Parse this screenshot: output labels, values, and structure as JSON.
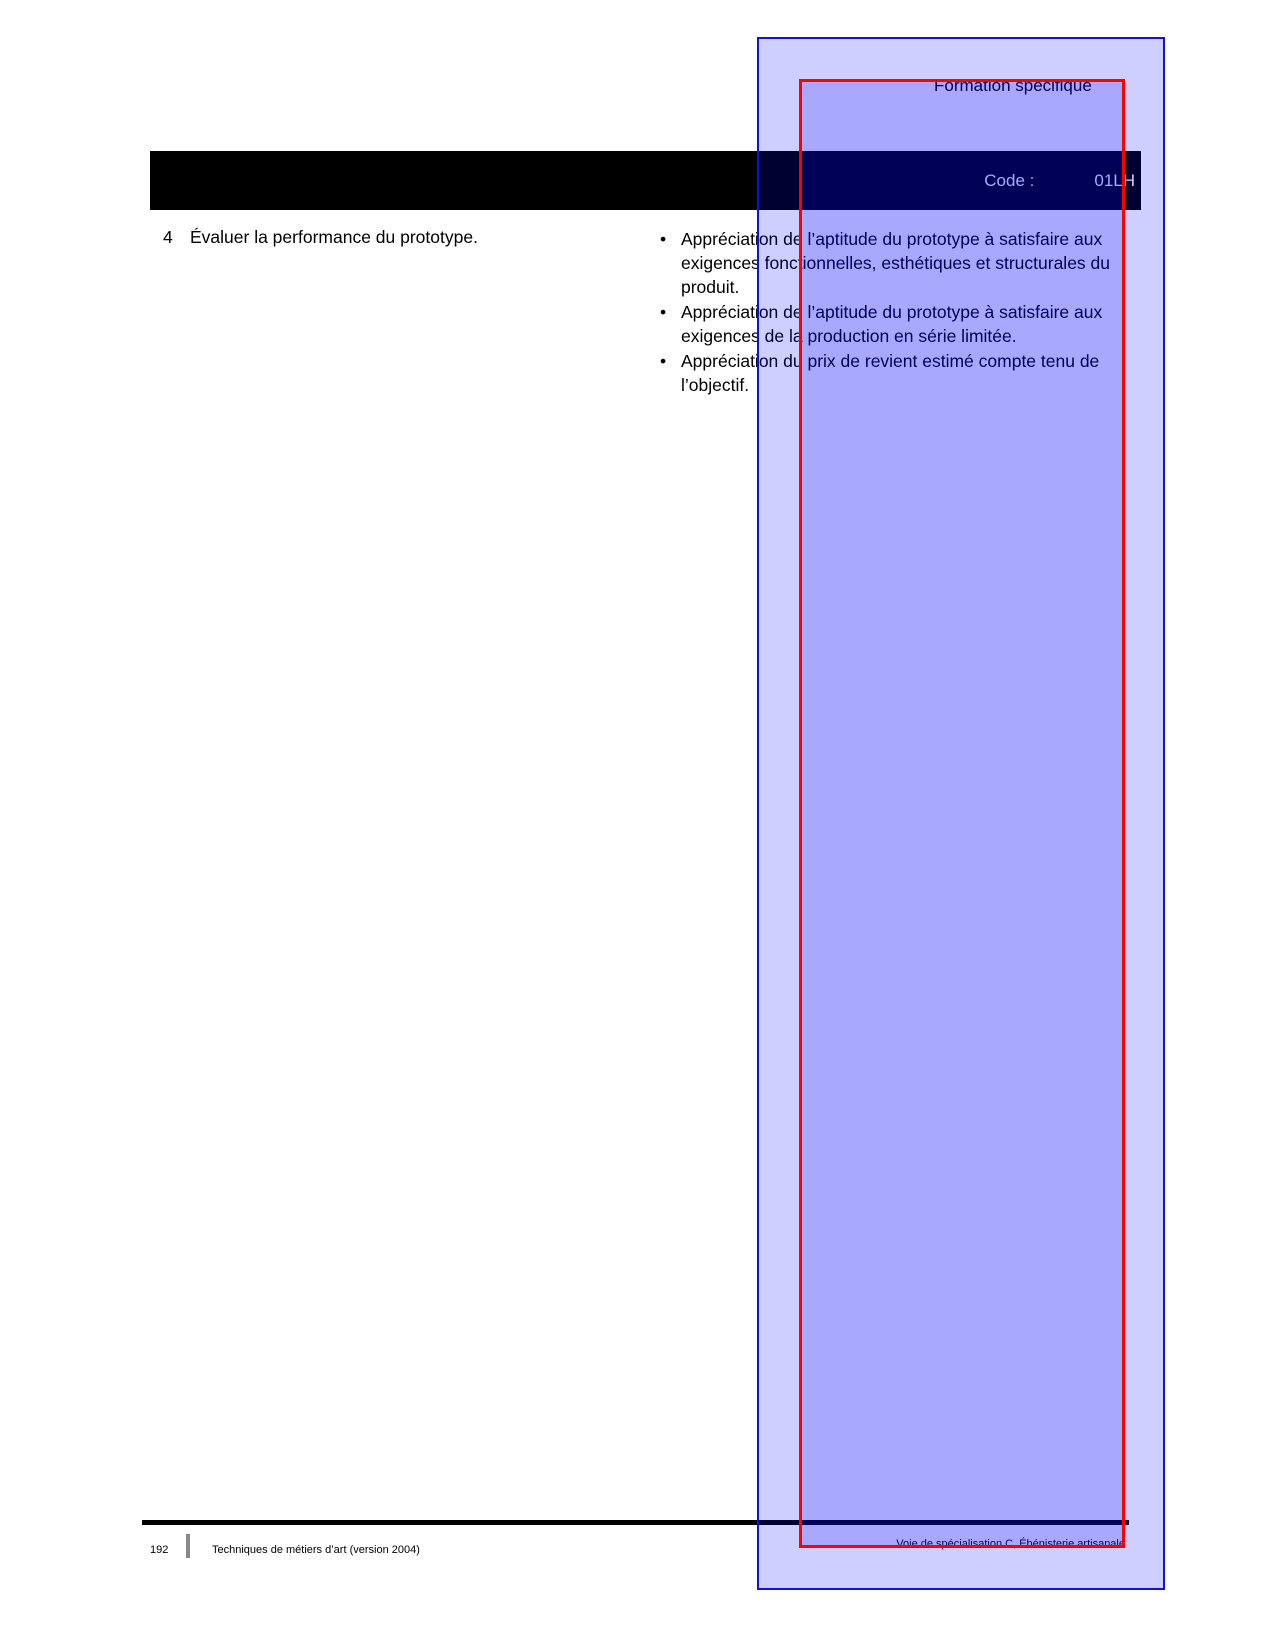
{
  "header": {
    "section_title": "Formation spécifique"
  },
  "bar": {
    "code_label": "Code :",
    "code_value": "01LH"
  },
  "step": {
    "number": "4",
    "text": "Évaluer la performance du prototype."
  },
  "criteria": [
    "Appréciation de l’aptitude du prototype à satisfaire aux exigences fonctionnelles, esthétiques et structurales du produit.",
    "Appréciation de l’aptitude du prototype à satisfaire aux exigences de la production en série limitée.",
    "Appréciation du prix de revient estimé compte tenu de l’objectif."
  ],
  "footer": {
    "page_number": "192",
    "left_text": "Techniques de métiers d’art (version 2004)",
    "right_text": "Voie de spécialisation C, Ébénisterie artisanale"
  },
  "colors": {
    "overlay_outer": "#1010e0",
    "overlay_inner": "#ff0000"
  }
}
